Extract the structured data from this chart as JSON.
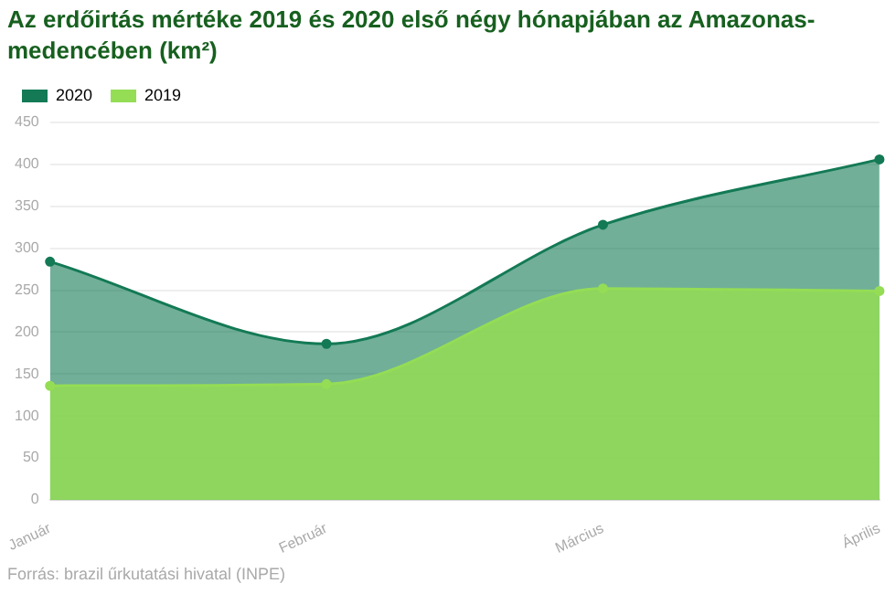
{
  "chart_data": {
    "type": "area",
    "title": "Az erdőirtás mértéke 2019 és 2020 első négy hónapjában az Amazonas-medencében (km²)",
    "categories": [
      "Január",
      "Február",
      "Március",
      "Április"
    ],
    "series": [
      {
        "name": "2020",
        "color": "#137a55",
        "values": [
          284,
          186,
          328,
          406
        ]
      },
      {
        "name": "2019",
        "color": "#94dd55",
        "values": [
          136,
          138,
          252,
          249
        ]
      }
    ],
    "ylim": [
      0,
      450
    ],
    "yticks": [
      0,
      50,
      100,
      150,
      200,
      250,
      300,
      350,
      400,
      450
    ],
    "grid": "y",
    "legend": "top left",
    "marker": "circle",
    "annotations": [
      "Forrás: brazil űrkutatási hivatal (INPE)"
    ]
  }
}
